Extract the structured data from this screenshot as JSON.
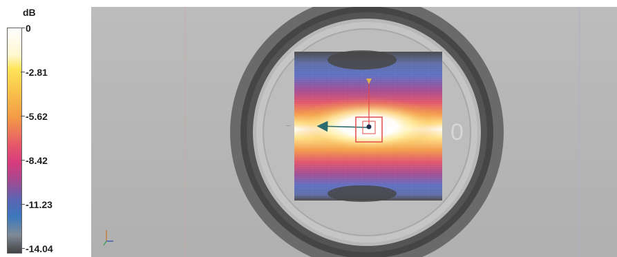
{
  "legend": {
    "unit": "dB",
    "tick_labels": [
      "0",
      "-2.81",
      "-5.62",
      "-8.42",
      "-11.23",
      "-14.04"
    ]
  },
  "viewport": {
    "background": "#b7b7b7"
  },
  "colors": {
    "legend_top": "#ffffff",
    "legend_mid": "#e6586a",
    "legend_bottom": "#434343",
    "marker": "#e04a4a",
    "arrow_primary": "#2c6b6f"
  }
}
